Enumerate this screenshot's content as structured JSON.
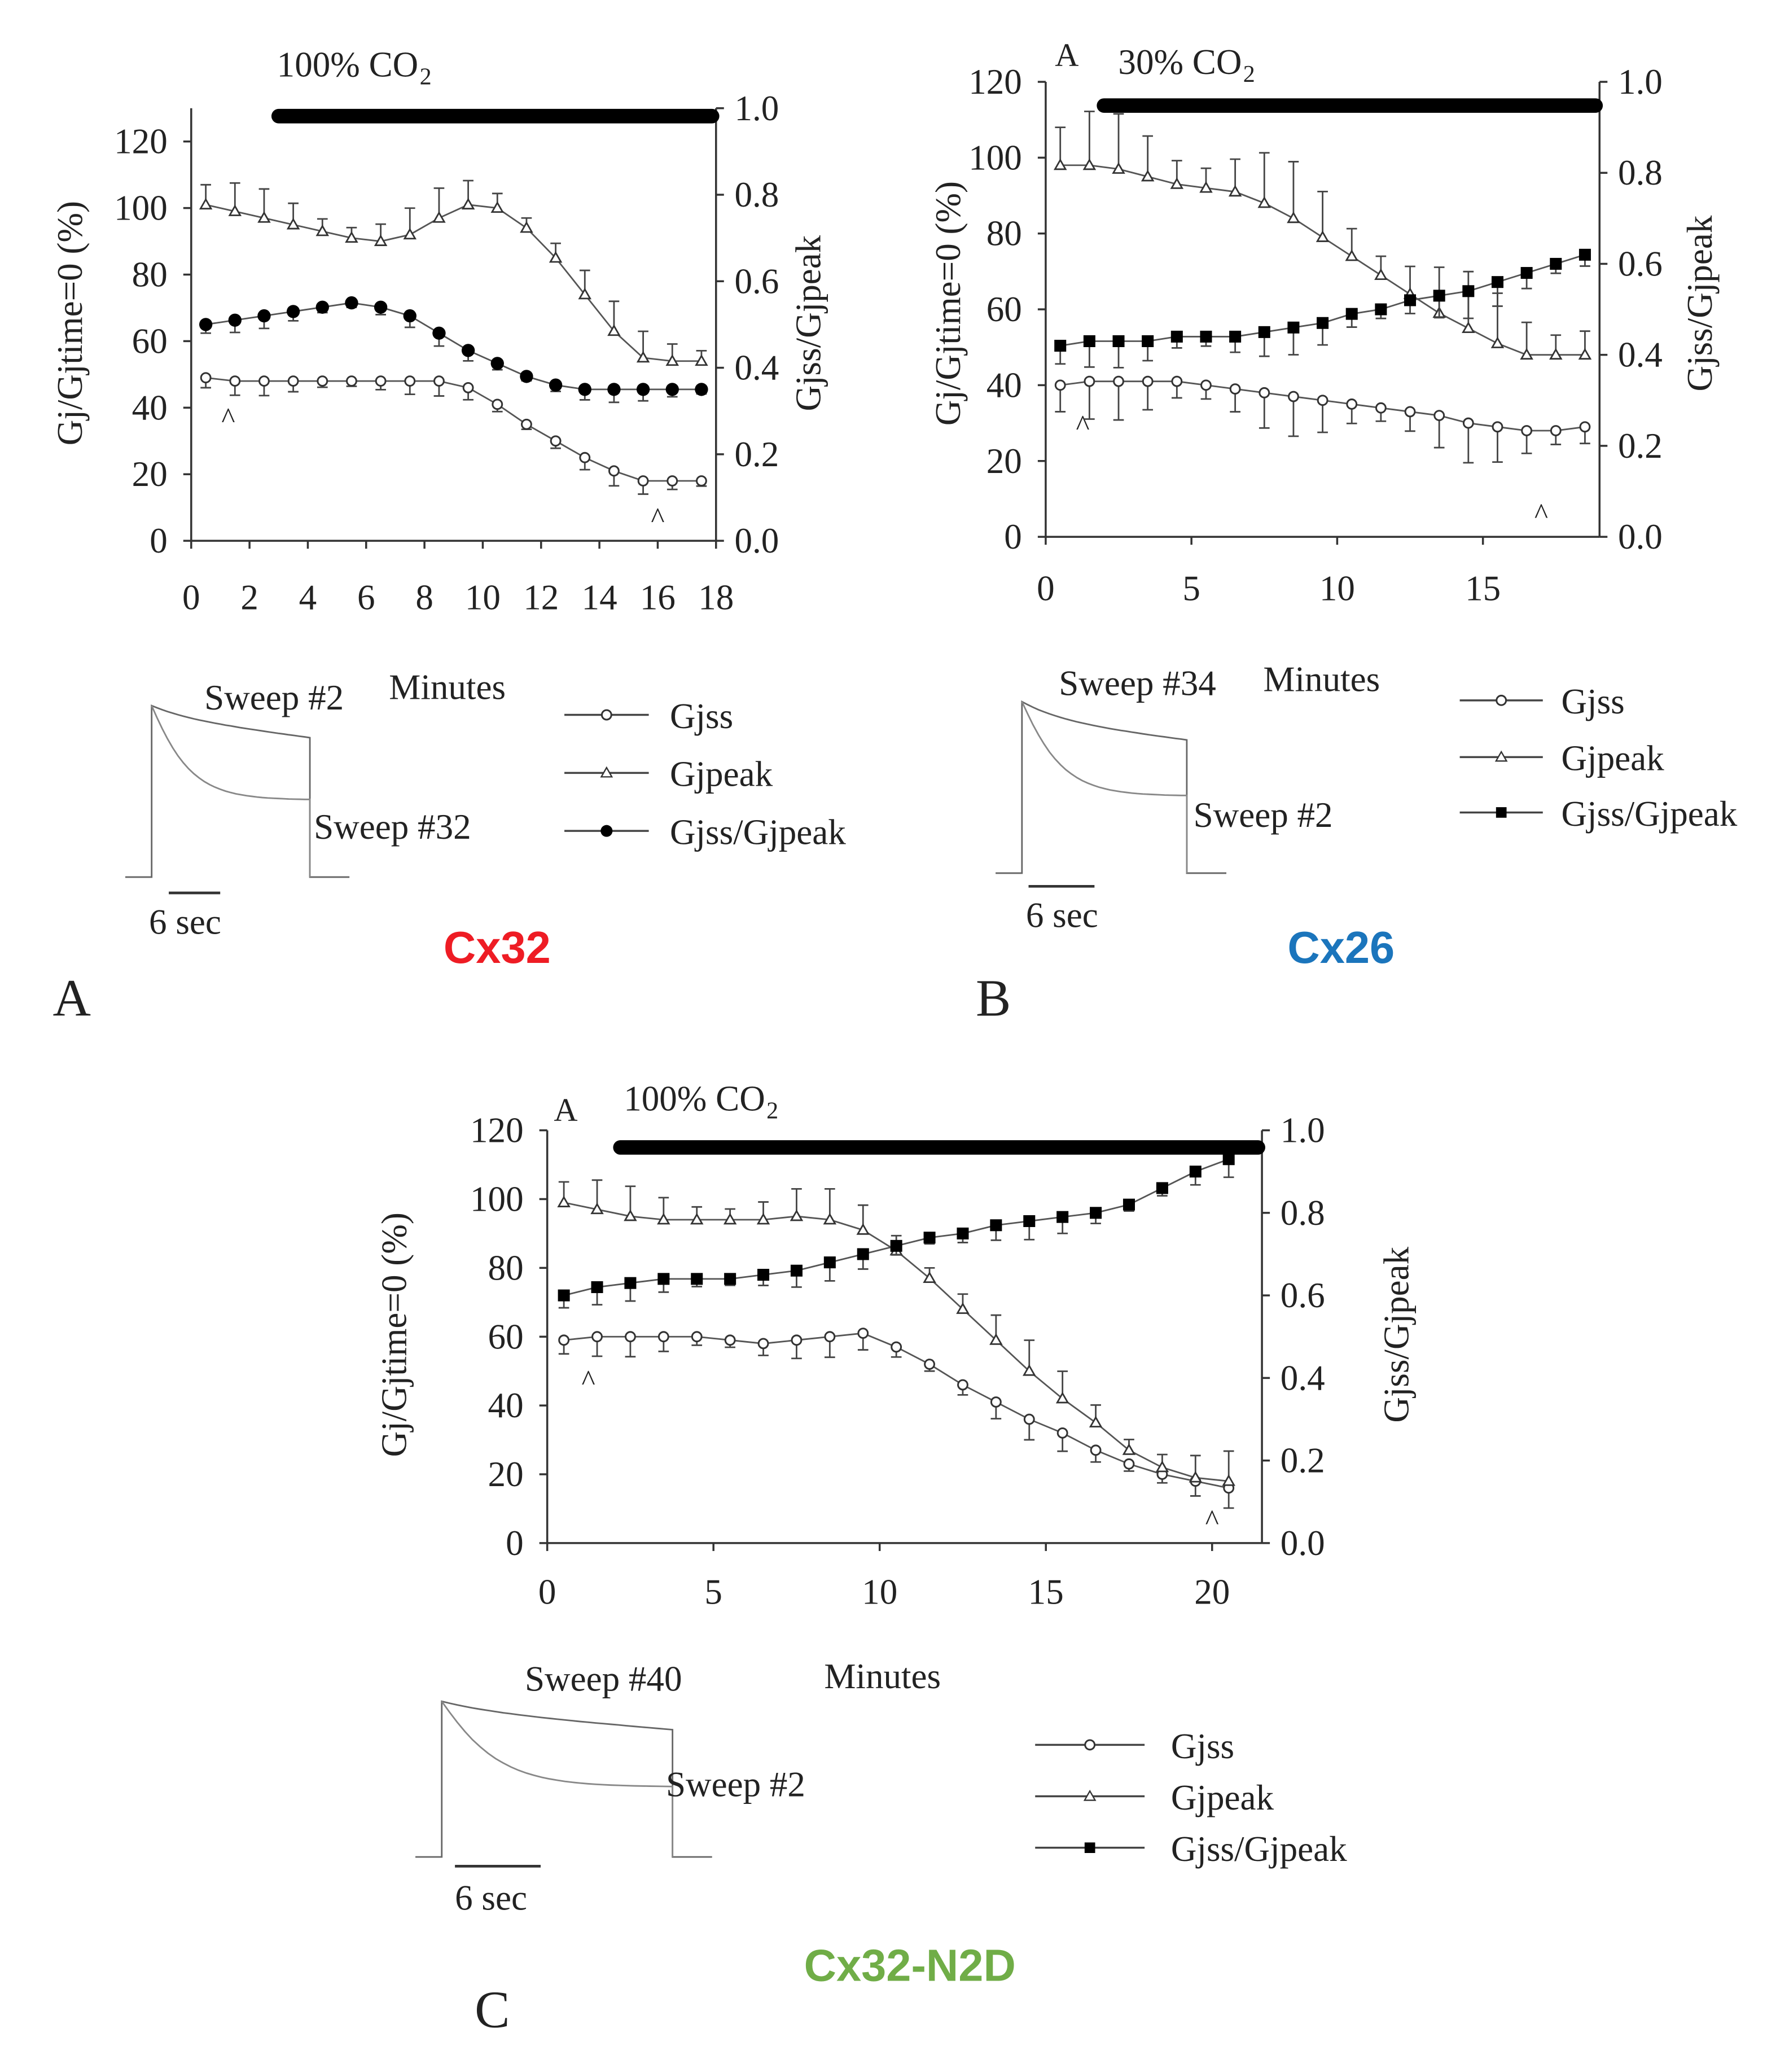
{
  "chart_data": [
    {
      "type": "line",
      "panel_letter": "A",
      "construct": "Cx32",
      "construct_color": "#ee1c24",
      "treatment": "100% CO",
      "treatment_sub": "2",
      "xlabel": "Minutes",
      "ylabel": "Gj/Gjtime=0 (%)",
      "y2label": "Gjss/Gjpeak",
      "xlim": [
        0,
        18
      ],
      "ylim": [
        0,
        130
      ],
      "y2lim": [
        0,
        1.0
      ],
      "xticks": [
        "0",
        "2",
        "4",
        "6",
        "8",
        "10",
        "12",
        "14",
        "16",
        "18"
      ],
      "yticks": [
        "0",
        "20",
        "40",
        "60",
        "80",
        "100",
        "120"
      ],
      "y2ticks": [
        "0.0",
        "0.2",
        "0.4",
        "0.6",
        "0.8",
        "1.0"
      ],
      "co2_bar_minutes": [
        3,
        18
      ],
      "arrow_markers_minutes": [
        1,
        16
      ],
      "x": [
        0.5,
        1.5,
        2.5,
        3.5,
        4.5,
        5.5,
        6.5,
        7.5,
        8.5,
        9.5,
        10.5,
        11.5,
        12.5,
        13.5,
        14.5,
        15.5,
        16.5,
        17.5
      ],
      "series": [
        {
          "name": "Gjss",
          "axis": "left",
          "err": 3,
          "values": [
            49,
            48,
            48,
            48,
            48,
            48,
            48,
            48,
            48,
            46,
            41,
            35,
            30,
            25,
            21,
            18,
            18,
            18
          ]
        },
        {
          "name": "Gjpeak",
          "axis": "left",
          "err": 6,
          "values": [
            101,
            99,
            97,
            95,
            93,
            91,
            90,
            92,
            97,
            101,
            100,
            94,
            85,
            74,
            63,
            55,
            54,
            54
          ]
        },
        {
          "name": "Gjss/Gjpeak",
          "axis": "right",
          "err": 0.02,
          "values": [
            0.5,
            0.51,
            0.52,
            0.53,
            0.54,
            0.55,
            0.54,
            0.52,
            0.48,
            0.44,
            0.41,
            0.38,
            0.36,
            0.35,
            0.35,
            0.35,
            0.35,
            0.35
          ]
        }
      ],
      "inset": {
        "sweep_upper": "Sweep #2",
        "sweep_lower": "Sweep #32",
        "scale_label": "6 sec"
      }
    },
    {
      "type": "line",
      "panel_letter": "B",
      "inner_letter": "A",
      "construct": "Cx26",
      "construct_color": "#1b75bc",
      "treatment": "30% CO",
      "treatment_sub": "2",
      "xlabel": "Minutes",
      "ylabel": "Gj/Gjtime=0 (%)",
      "y2label": "Gjss/Gjpeak",
      "xlim": [
        0,
        19
      ],
      "ylim": [
        0,
        120
      ],
      "y2lim": [
        0,
        1.0
      ],
      "xticks": [
        "0",
        "5",
        "10",
        "15"
      ],
      "yticks": [
        "0",
        "20",
        "40",
        "60",
        "80",
        "100",
        "120"
      ],
      "y2ticks": [
        "0.0",
        "0.2",
        "0.4",
        "0.6",
        "0.8",
        "1.0"
      ],
      "co2_bar_minutes": [
        2,
        19
      ],
      "arrow_markers_minutes": [
        1,
        17
      ],
      "x": [
        0.5,
        1.5,
        2.5,
        3.5,
        4.5,
        5.5,
        6.5,
        7.5,
        8.5,
        9.5,
        10.5,
        11.5,
        12.5,
        13.5,
        14.5,
        15.5,
        16.5,
        17.5,
        18.5
      ],
      "series": [
        {
          "name": "Gjss",
          "axis": "left",
          "err": 7,
          "values": [
            40,
            41,
            41,
            41,
            41,
            40,
            39,
            38,
            37,
            36,
            35,
            34,
            33,
            32,
            30,
            29,
            28,
            28,
            29
          ]
        },
        {
          "name": "Gjpeak",
          "axis": "left",
          "err": 10,
          "values": [
            98,
            98,
            97,
            95,
            93,
            92,
            91,
            88,
            84,
            79,
            74,
            69,
            64,
            59,
            55,
            51,
            48,
            48,
            48
          ]
        },
        {
          "name": "Gjss/Gjpeak",
          "axis": "right",
          "err": 0.04,
          "values": [
            0.42,
            0.43,
            0.43,
            0.43,
            0.44,
            0.44,
            0.44,
            0.45,
            0.46,
            0.47,
            0.49,
            0.5,
            0.52,
            0.53,
            0.54,
            0.56,
            0.58,
            0.6,
            0.62
          ]
        }
      ],
      "inset": {
        "sweep_upper": "Sweep #34",
        "sweep_lower": "Sweep #2",
        "scale_label": "6 sec"
      }
    },
    {
      "type": "line",
      "panel_letter": "C",
      "inner_letter": "A",
      "construct": "Cx32-N2D",
      "construct_color": "#70ad47",
      "treatment": "100% CO",
      "treatment_sub": "2",
      "xlabel": "Minutes",
      "ylabel": "Gj/Gjtime=0 (%)",
      "y2label": "Gjss/Gjpeak",
      "xlim": [
        0,
        21.5
      ],
      "ylim": [
        0,
        120
      ],
      "y2lim": [
        0,
        1.0
      ],
      "xticks": [
        "0",
        "5",
        "10",
        "15",
        "20"
      ],
      "yticks": [
        "0",
        "20",
        "40",
        "60",
        "80",
        "100",
        "120"
      ],
      "y2ticks": [
        "0.0",
        "0.2",
        "0.4",
        "0.6",
        "0.8",
        "1.0"
      ],
      "co2_bar_minutes": [
        2.2,
        21.5
      ],
      "arrow_markers_minutes": [
        1,
        20
      ],
      "x": [
        0.5,
        1.5,
        2.5,
        3.5,
        4.5,
        5.5,
        6.5,
        7.5,
        8.5,
        9.5,
        10.5,
        11.5,
        12.5,
        13.5,
        14.5,
        15.5,
        16.5,
        17.5,
        18.5,
        19.5,
        20.5
      ],
      "series": [
        {
          "name": "Gjss",
          "axis": "left",
          "err": 4,
          "values": [
            59,
            60,
            60,
            60,
            60,
            59,
            58,
            59,
            60,
            61,
            57,
            52,
            46,
            41,
            36,
            32,
            27,
            23,
            20,
            18,
            16
          ]
        },
        {
          "name": "Gjpeak",
          "axis": "left",
          "err": 6,
          "values": [
            99,
            97,
            95,
            94,
            94,
            94,
            94,
            95,
            94,
            91,
            85,
            77,
            68,
            59,
            50,
            42,
            35,
            27,
            22,
            19,
            18
          ]
        },
        {
          "name": "Gjss/Gjpeak",
          "axis": "right",
          "err": 0.03,
          "values": [
            0.6,
            0.62,
            0.63,
            0.64,
            0.64,
            0.64,
            0.65,
            0.66,
            0.68,
            0.7,
            0.72,
            0.74,
            0.75,
            0.77,
            0.78,
            0.79,
            0.8,
            0.82,
            0.86,
            0.9,
            0.93
          ]
        }
      ],
      "inset": {
        "sweep_upper": "Sweep #40",
        "sweep_lower": "Sweep #2",
        "scale_label": "6 sec"
      }
    }
  ]
}
